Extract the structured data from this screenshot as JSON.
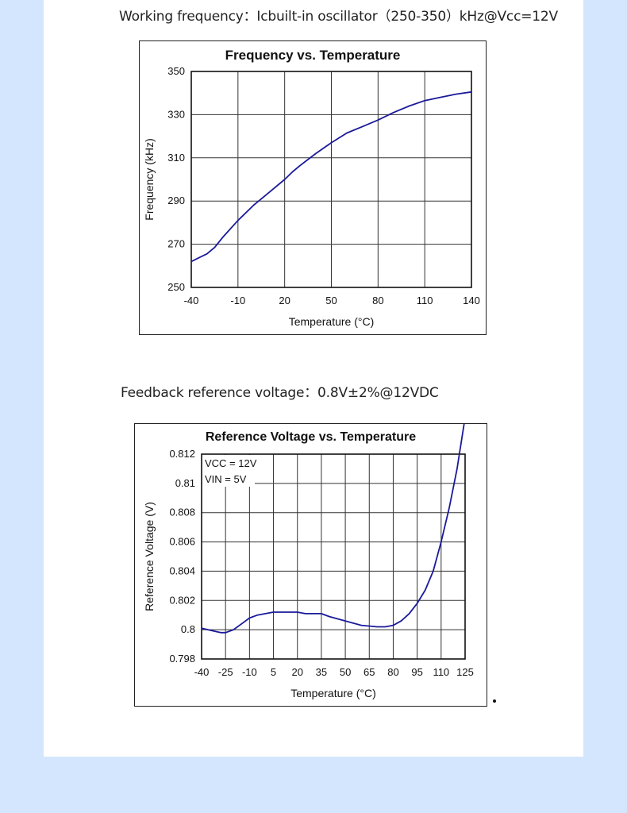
{
  "captions": {
    "frequency": "Working frequency：Icbuilt-in oscillator（250-350）kHz@Vcc=12V",
    "voltage": "Feedback reference voltage：0.8V±2%@12VDC"
  },
  "colors": {
    "page_bg": "#d3e6fd",
    "panel_bg": "#ffffff",
    "line": "#1a1a9a",
    "grid": "#333333"
  },
  "chart_data": [
    {
      "type": "line",
      "title": "Frequency vs. Temperature",
      "xlabel": "Temperature (°C)",
      "ylabel": "Frequency (kHz)",
      "xlim": [
        -40,
        140
      ],
      "ylim": [
        250,
        350
      ],
      "xticks": [
        -40,
        -10,
        20,
        50,
        80,
        110,
        140
      ],
      "yticks": [
        250,
        270,
        290,
        310,
        330,
        350
      ],
      "grid": true,
      "series": [
        {
          "x": [
            -40,
            -30,
            -25,
            -20,
            -10,
            0,
            10,
            20,
            25,
            30,
            40,
            50,
            60,
            70,
            80,
            90,
            100,
            110,
            120,
            130,
            140
          ],
          "y": [
            262,
            265.5,
            268.5,
            273,
            281,
            288,
            294,
            300,
            303.5,
            306.5,
            312,
            317,
            321.5,
            324.5,
            327.5,
            331,
            334,
            336.5,
            338,
            339.5,
            340.5
          ]
        }
      ]
    },
    {
      "type": "line",
      "title": "Reference Voltage vs. Temperature",
      "xlabel": "Temperature (°C)",
      "ylabel": "Reference Voltage (V)",
      "xlim": [
        -40,
        125
      ],
      "ylim": [
        0.798,
        0.812
      ],
      "xticks": [
        -40,
        -25,
        -10,
        5,
        20,
        35,
        50,
        65,
        80,
        95,
        110,
        125
      ],
      "yticks": [
        0.798,
        0.8,
        0.802,
        0.804,
        0.806,
        0.808,
        0.81,
        0.812
      ],
      "ytick_labels": [
        "0.798",
        "0.8",
        "0.802",
        "0.804",
        "0.806",
        "0.808",
        "0.81",
        "0.812"
      ],
      "grid": true,
      "annotations": [
        "VCC = 12V",
        "VIN = 5V"
      ],
      "series": [
        {
          "x": [
            -40,
            -32,
            -28,
            -25,
            -20,
            -15,
            -10,
            -5,
            0,
            5,
            10,
            15,
            20,
            25,
            30,
            35,
            40,
            50,
            60,
            70,
            75,
            80,
            85,
            90,
            95,
            100,
            105,
            110,
            115,
            120,
            125
          ],
          "y": [
            0.8001,
            0.7999,
            0.7998,
            0.7998,
            0.8,
            0.8004,
            0.8008,
            0.801,
            0.8011,
            0.8012,
            0.8012,
            0.8012,
            0.8012,
            0.8011,
            0.8011,
            0.8011,
            0.8009,
            0.8006,
            0.8003,
            0.8002,
            0.8002,
            0.8003,
            0.8006,
            0.8011,
            0.8018,
            0.8027,
            0.804,
            0.806,
            0.8083,
            0.811,
            0.8145
          ]
        }
      ]
    }
  ]
}
